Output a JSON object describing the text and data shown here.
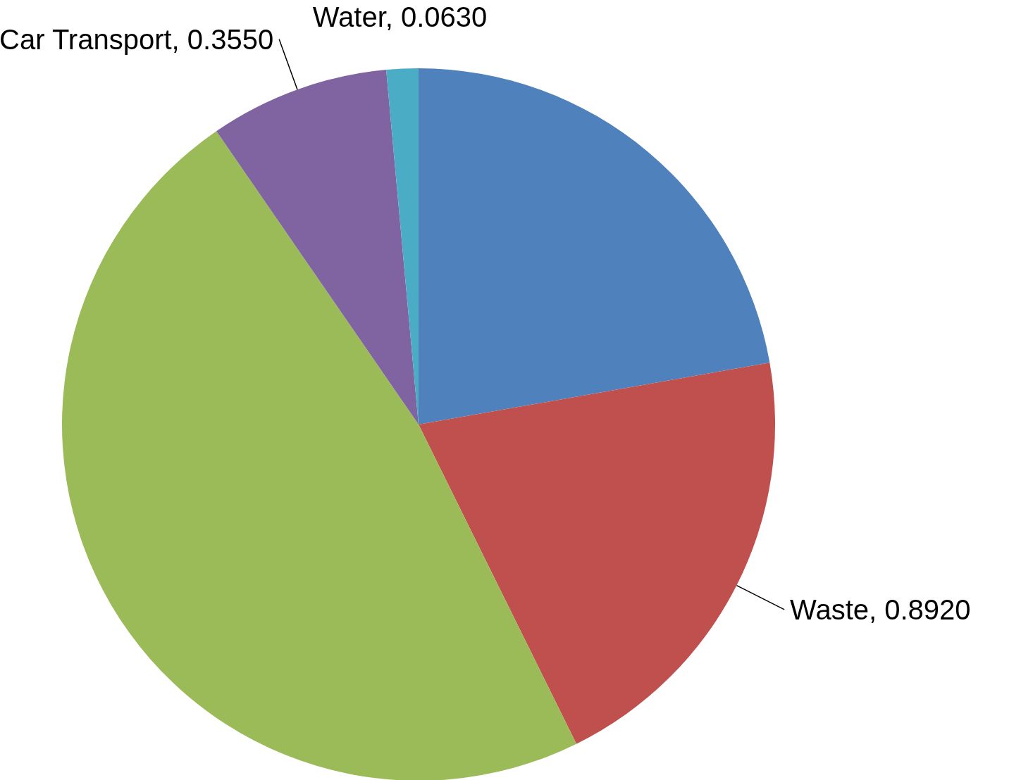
{
  "chart_data": {
    "type": "pie",
    "categories": [
      null,
      "Waste",
      null,
      "Car Transport",
      "Water"
    ],
    "values": [
      0.968,
      0.892,
      2.078,
      0.355,
      0.063
    ],
    "value_labels": [
      null,
      "0.8920",
      null,
      "0.3550",
      "0.0630"
    ],
    "colors": [
      "#4f81bd",
      "#c0504d",
      "#9bbb59",
      "#8064a2",
      "#4bacc6"
    ]
  }
}
